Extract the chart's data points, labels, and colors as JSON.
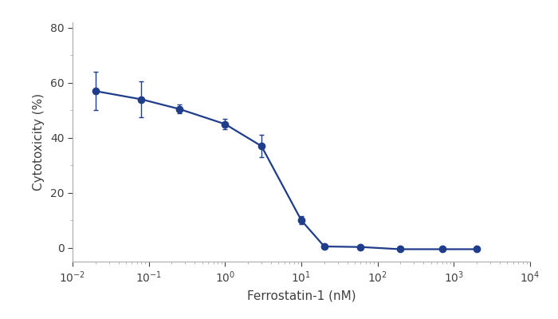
{
  "x_values": [
    0.02,
    0.08,
    0.25,
    1.0,
    3.0,
    10.0,
    20.0,
    60.0,
    200.0,
    700.0,
    2000.0
  ],
  "y_values": [
    57.0,
    54.0,
    50.5,
    45.0,
    37.0,
    10.0,
    0.5,
    0.3,
    -0.5,
    -0.5,
    -0.5
  ],
  "y_err": [
    7.0,
    6.5,
    1.5,
    2.0,
    4.0,
    1.5,
    0.5,
    0.5,
    0.5,
    0.5,
    0.5
  ],
  "line_color": "#1f3d8a",
  "xlabel": "Ferrostatin-1 (nM)",
  "ylabel": "Cytotoxicity (%)",
  "xlim_log": [
    -2,
    4
  ],
  "ylim": [
    -5,
    82
  ],
  "yticks": [
    0,
    20,
    40,
    60,
    80
  ],
  "background_color": "#ffffff",
  "marker_size": 6,
  "line_width": 1.6,
  "capsize": 2.5,
  "elinewidth": 1.0,
  "font_size_label": 11,
  "font_color": "#404040",
  "spine_color": "#aaaaaa"
}
